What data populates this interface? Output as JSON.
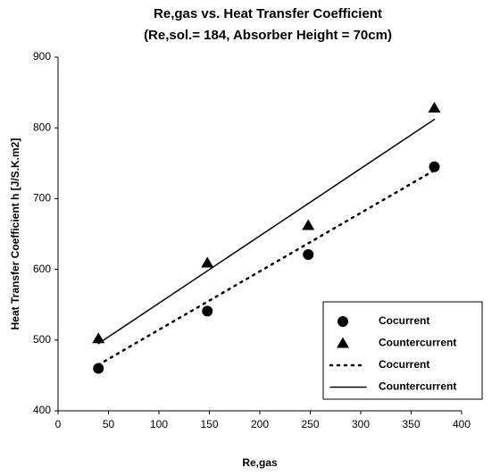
{
  "chart_data": {
    "type": "scatter",
    "title": "Re,gas  vs. Heat Transfer Coefficient",
    "subtitle": "(Re,sol.= 184, Absorber Height = 70cm)",
    "x_label": "Re,gas",
    "y_label": "Heat Transfer Coefficient h [J/S.K.m2]",
    "xlim": [
      0,
      400
    ],
    "xticks": [
      0,
      50,
      100,
      150,
      200,
      250,
      300,
      350,
      400
    ],
    "ylim": [
      400,
      900
    ],
    "yticks": [
      400,
      500,
      600,
      700,
      800,
      900
    ],
    "legend": "lower right",
    "series": [
      {
        "name": "Cocurrent",
        "color": "#000000",
        "marker": "circle",
        "x": [
          40,
          148,
          248,
          373
        ],
        "values": [
          460,
          541,
          621,
          745
        ]
      },
      {
        "name": "Countercurrent",
        "color": "#000000",
        "marker": "triangle",
        "x": [
          40,
          148,
          248,
          373
        ],
        "values": [
          502,
          609,
          662,
          828
        ]
      },
      {
        "name": "Cocurrent",
        "color": "#000000",
        "line": "dotted",
        "x": [
          40,
          373
        ],
        "values": [
          465,
          740
        ]
      },
      {
        "name": "Countercurrent",
        "color": "#000000",
        "line": "solid",
        "x": [
          40,
          373
        ],
        "values": [
          495,
          812
        ]
      }
    ]
  }
}
